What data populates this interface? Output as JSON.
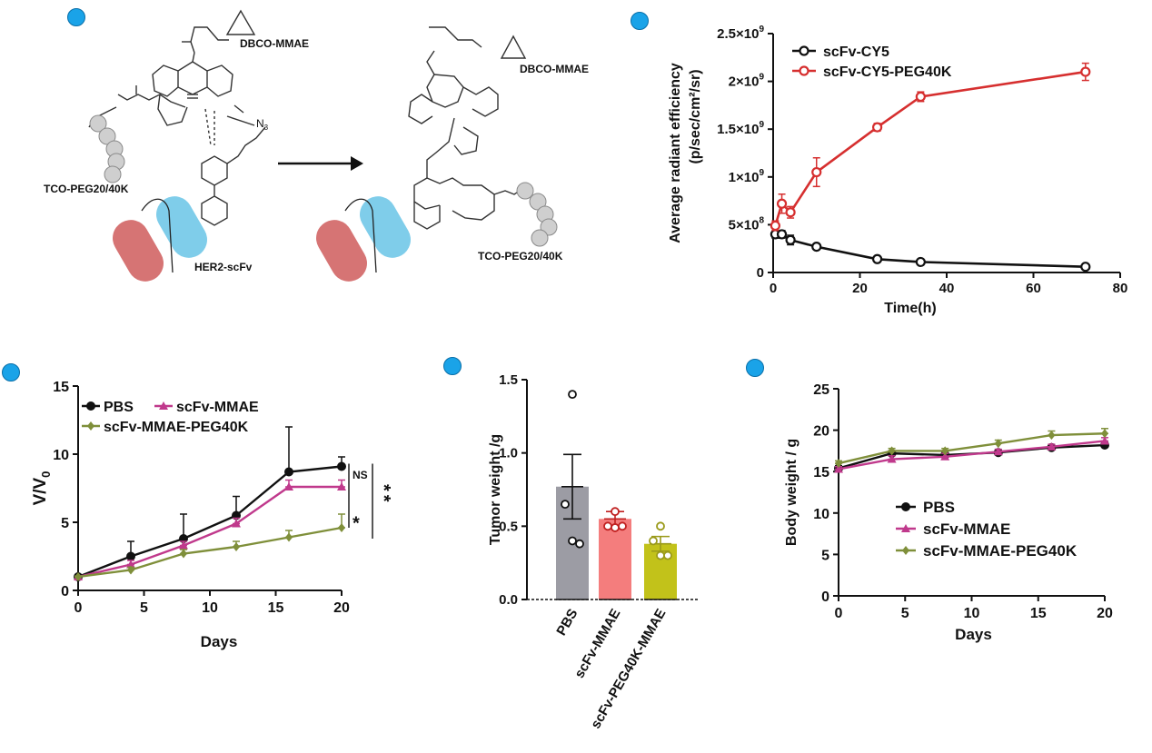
{
  "panel_markers": [
    "dot",
    "dot",
    "dot",
    "dot",
    "dot"
  ],
  "scheme": {
    "dbco_label_1": "DBCO-MMAE",
    "dbco_label_2": "DBCO-MMAE",
    "tco_label_1": "TCO-PEG20/40K",
    "tco_label_2": "TCO-PEG20/40K",
    "scfv_label": "HER2-scFv",
    "n3_label": "N",
    "n3_sub": "3"
  },
  "colors": {
    "black": "#111111",
    "red": "#d62f2f",
    "magenta": "#c0398c",
    "olive": "#7f8f3a",
    "bar_gray": "#9c9ca4",
    "bar_pink": "#f47d7d",
    "bar_yellow": "#c2c21a",
    "cyan": "#7fcdea",
    "rose": "#d67474",
    "bead": "#cfcfcf"
  },
  "chart_data": [
    {
      "id": "radiant",
      "type": "line",
      "ylabel": "Average radiant efficiency",
      "ylabel2": "(p/sec/cm²/sr)",
      "xlabel": "Time(h)",
      "xlim": [
        0,
        80
      ],
      "ylim": [
        0,
        2.5
      ],
      "x_ticks": [
        "0",
        "20",
        "40",
        "60",
        "80"
      ],
      "y_ticks": [
        {
          "v": 0,
          "base": "0",
          "exp": ""
        },
        {
          "v": 0.5,
          "base": "5×10",
          "exp": "8"
        },
        {
          "v": 1.0,
          "base": "1×10",
          "exp": "9"
        },
        {
          "v": 1.5,
          "base": "1.5×10",
          "exp": "9"
        },
        {
          "v": 2.0,
          "base": "2×10",
          "exp": "9"
        },
        {
          "v": 2.5,
          "base": "2.5×10",
          "exp": "9"
        }
      ],
      "series": [
        {
          "name": "scFv-CY5",
          "color": "#111111",
          "x": [
            0.5,
            2,
            4,
            10,
            24,
            34,
            72
          ],
          "y": [
            0.4,
            0.4,
            0.34,
            0.27,
            0.14,
            0.11,
            0.06
          ],
          "err": [
            0.04,
            0.04,
            0.05,
            0.03,
            0.02,
            0.02,
            0.02
          ]
        },
        {
          "name": "scFv-CY5-PEG40K",
          "color": "#d62f2f",
          "x": [
            0.5,
            2,
            4,
            10,
            24,
            34,
            72
          ],
          "y": [
            0.49,
            0.72,
            0.63,
            1.05,
            1.52,
            1.84,
            2.1
          ],
          "err": [
            0.05,
            0.1,
            0.06,
            0.15,
            0.04,
            0.05,
            0.09
          ]
        }
      ]
    },
    {
      "id": "vv0",
      "type": "line",
      "ylabel": "V/V",
      "ylabel_sub": "0",
      "xlabel": "Days",
      "xlim": [
        0,
        20
      ],
      "ylim": [
        0,
        15
      ],
      "x_ticks": [
        "0",
        "5",
        "10",
        "15",
        "20"
      ],
      "y_ticks": [
        "0",
        "5",
        "10",
        "15"
      ],
      "significance": {
        "ns": "NS",
        "single": "*",
        "double": "**"
      },
      "series": [
        {
          "name": "PBS",
          "color": "#111111",
          "marker": "circle",
          "x": [
            0,
            4,
            8,
            12,
            16,
            20
          ],
          "y": [
            1.0,
            2.5,
            3.8,
            5.5,
            8.7,
            9.1
          ],
          "err": [
            0.05,
            1.1,
            1.8,
            1.4,
            3.3,
            0.7
          ]
        },
        {
          "name": "scFv-MMAE",
          "color": "#c0398c",
          "marker": "triangle",
          "x": [
            0,
            4,
            8,
            12,
            16,
            20
          ],
          "y": [
            1.0,
            1.9,
            3.3,
            4.9,
            7.6,
            7.6
          ],
          "err": [
            0.05,
            0.3,
            0.3,
            0.4,
            0.5,
            0.5
          ]
        },
        {
          "name": "scFv-MMAE-PEG40K",
          "color": "#7f8f3a",
          "marker": "diamond",
          "x": [
            0,
            4,
            8,
            12,
            16,
            20
          ],
          "y": [
            1.0,
            1.5,
            2.7,
            3.2,
            3.9,
            4.6
          ],
          "err": [
            0.05,
            0.2,
            0.3,
            0.4,
            0.5,
            1.0
          ]
        }
      ]
    },
    {
      "id": "tumor",
      "type": "bar",
      "ylabel": "Tumor weight /g",
      "ylim": [
        0,
        1.5
      ],
      "y_ticks": [
        "0.0",
        "0.5",
        "1.0",
        "1.5"
      ],
      "categories": [
        "PBS",
        "scFv-MMAE",
        "scFv-PEG40K-MMAE"
      ],
      "values": [
        0.77,
        0.55,
        0.38
      ],
      "err": [
        0.22,
        0.05,
        0.05
      ],
      "points": [
        [
          1.4,
          0.65,
          0.4,
          0.38
        ],
        [
          0.6,
          0.5,
          0.49,
          0.5
        ],
        [
          0.5,
          0.4,
          0.3,
          0.3
        ]
      ],
      "bar_colors": [
        "#9c9ca4",
        "#f47d7d",
        "#c2c21a"
      ],
      "point_colors": [
        "#111111",
        "#c02020",
        "#9a9a1a"
      ]
    },
    {
      "id": "body",
      "type": "line",
      "ylabel": "Body weight / g",
      "xlabel": "Days",
      "xlim": [
        0,
        20
      ],
      "ylim": [
        0,
        25
      ],
      "x_ticks": [
        "0",
        "5",
        "10",
        "15",
        "20"
      ],
      "y_ticks": [
        "0",
        "5",
        "10",
        "15",
        "20",
        "25"
      ],
      "series": [
        {
          "name": "PBS",
          "color": "#111111",
          "marker": "circle",
          "x": [
            0,
            4,
            8,
            12,
            16,
            20
          ],
          "y": [
            15.4,
            17.2,
            17.0,
            17.3,
            17.9,
            18.2
          ],
          "err": [
            0.3,
            0.3,
            0.3,
            0.3,
            0.3,
            0.3
          ]
        },
        {
          "name": "scFv-MMAE",
          "color": "#c0398c",
          "marker": "triangle",
          "x": [
            0,
            4,
            8,
            12,
            16,
            20
          ],
          "y": [
            15.3,
            16.5,
            16.8,
            17.4,
            18.0,
            18.7
          ],
          "err": [
            0.3,
            0.4,
            0.4,
            0.3,
            0.3,
            0.4
          ]
        },
        {
          "name": "scFv-MMAE-PEG40K",
          "color": "#7f8f3a",
          "marker": "diamond",
          "x": [
            0,
            4,
            8,
            12,
            16,
            20
          ],
          "y": [
            16.0,
            17.5,
            17.5,
            18.4,
            19.4,
            19.6
          ],
          "err": [
            0.3,
            0.3,
            0.3,
            0.4,
            0.5,
            0.6
          ]
        }
      ]
    }
  ]
}
